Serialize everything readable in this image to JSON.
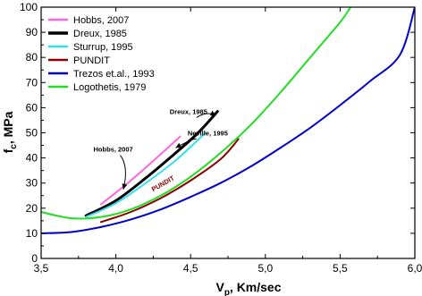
{
  "chart_data": {
    "type": "line",
    "xlabel_main": "V",
    "xlabel_sub": "p",
    "xlabel_rest": ", Km/sec",
    "ylabel_main": "f",
    "ylabel_sub": "c",
    "ylabel_rest": ", MPa",
    "xlim": [
      3.5,
      6.0
    ],
    "ylim": [
      0,
      100
    ],
    "x_ticks": [
      {
        "value": 3.5,
        "label": "3,5"
      },
      {
        "value": 4.0,
        "label": "4,0"
      },
      {
        "value": 4.5,
        "label": "4,5"
      },
      {
        "value": 5.0,
        "label": "5,0"
      },
      {
        "value": 5.5,
        "label": "5,5"
      },
      {
        "value": 6.0,
        "label": "6,0"
      }
    ],
    "y_ticks": [
      {
        "value": 0,
        "label": "0"
      },
      {
        "value": 10,
        "label": "10"
      },
      {
        "value": 20,
        "label": "20"
      },
      {
        "value": 30,
        "label": "30"
      },
      {
        "value": 40,
        "label": "40"
      },
      {
        "value": 50,
        "label": "50"
      },
      {
        "value": 60,
        "label": "60"
      },
      {
        "value": 70,
        "label": "70"
      },
      {
        "value": 80,
        "label": "80"
      },
      {
        "value": 90,
        "label": "90"
      },
      {
        "value": 100,
        "label": "100"
      }
    ],
    "grid": false,
    "legend_position": "top-left",
    "series": [
      {
        "name": "Hobbs, 2007",
        "color": "#ff66dd",
        "width": 2,
        "points": [
          [
            3.9,
            21.5
          ],
          [
            4.1,
            31
          ],
          [
            4.3,
            41.5
          ],
          [
            4.43,
            48.5
          ]
        ]
      },
      {
        "name": "Dreux, 1985",
        "color": "#000000",
        "width": 3,
        "points": [
          [
            3.8,
            17
          ],
          [
            4.0,
            23
          ],
          [
            4.2,
            32
          ],
          [
            4.4,
            42
          ],
          [
            4.55,
            50
          ],
          [
            4.68,
            58.5
          ]
        ]
      },
      {
        "name": "Sturrup, 1995",
        "color": "#33e0f0",
        "width": 2,
        "points": [
          [
            3.8,
            16.5
          ],
          [
            4.0,
            22
          ],
          [
            4.2,
            30
          ],
          [
            4.4,
            39
          ],
          [
            4.6,
            50
          ]
        ]
      },
      {
        "name": "PUNDIT",
        "color": "#8b0000",
        "width": 2,
        "points": [
          [
            3.9,
            14.5
          ],
          [
            4.1,
            18.5
          ],
          [
            4.3,
            24
          ],
          [
            4.5,
            31
          ],
          [
            4.7,
            39.5
          ],
          [
            4.82,
            47.5
          ]
        ]
      },
      {
        "name": "Trezos et.al., 1993",
        "color": "#0000cc",
        "width": 2,
        "points": [
          [
            3.5,
            10
          ],
          [
            3.7,
            10.5
          ],
          [
            3.9,
            12.5
          ],
          [
            4.1,
            15.5
          ],
          [
            4.3,
            19.5
          ],
          [
            4.5,
            24.5
          ],
          [
            4.7,
            30
          ],
          [
            4.9,
            36.5
          ],
          [
            5.1,
            44
          ],
          [
            5.3,
            52
          ],
          [
            5.5,
            61
          ],
          [
            5.7,
            70.5
          ],
          [
            5.9,
            81
          ],
          [
            6.0,
            100
          ]
        ]
      },
      {
        "name": "Logothetis, 1979",
        "color": "#22dd22",
        "width": 2,
        "points": [
          [
            3.5,
            18.5
          ],
          [
            3.7,
            16
          ],
          [
            3.9,
            16.5
          ],
          [
            4.1,
            19.5
          ],
          [
            4.3,
            25
          ],
          [
            4.5,
            32.5
          ],
          [
            4.7,
            42
          ],
          [
            4.9,
            53
          ],
          [
            5.1,
            66
          ],
          [
            5.3,
            80
          ],
          [
            5.5,
            94
          ],
          [
            5.57,
            100
          ]
        ]
      }
    ],
    "annotations": [
      {
        "text": "Dreux, 1985",
        "x": 4.36,
        "y": 57.5,
        "arrow_to": [
          4.67,
          57
        ]
      },
      {
        "text": "Neville, 1995",
        "x": 4.48,
        "y": 49,
        "arrow_to": [
          4.4,
          44
        ]
      },
      {
        "text": "Hobbs, 2007",
        "x": 3.85,
        "y": 42.5,
        "arrow_to": [
          4.05,
          27.5
        ]
      },
      {
        "text": "PUNDIT",
        "x": 4.25,
        "y": 26.5,
        "rotate": -30,
        "color": "#8b0000"
      }
    ]
  }
}
